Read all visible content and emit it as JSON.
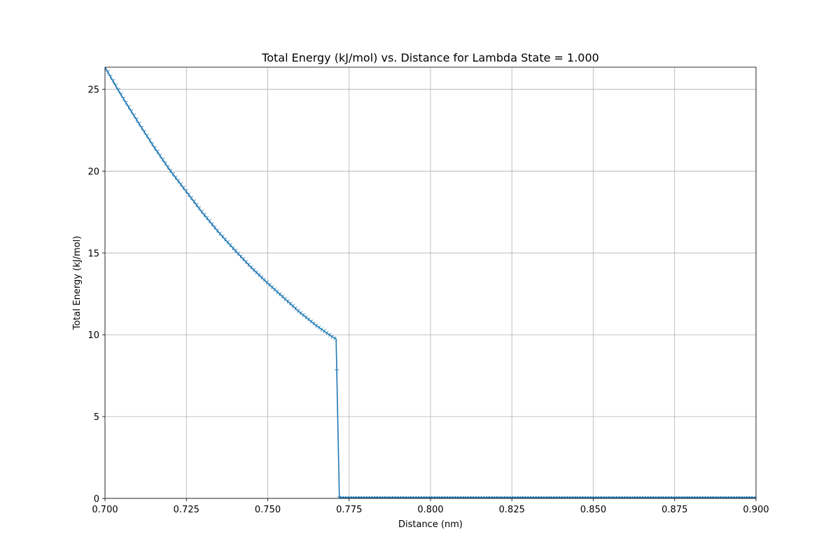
{
  "chart_data": {
    "type": "line",
    "title": "Total Energy (kJ/mol) vs. Distance for Lambda State = 1.000",
    "xlabel": "Distance (nm)",
    "ylabel": "Total Energy (kJ/mol)",
    "xlim": [
      0.7,
      0.9
    ],
    "ylim": [
      0,
      26.35
    ],
    "xticks": [
      0.7,
      0.725,
      0.75,
      0.775,
      0.8,
      0.825,
      0.85,
      0.875,
      0.9
    ],
    "xtick_labels": [
      "0.700",
      "0.725",
      "0.750",
      "0.775",
      "0.800",
      "0.825",
      "0.850",
      "0.875",
      "0.900"
    ],
    "yticks": [
      0,
      5,
      10,
      15,
      20,
      25
    ],
    "ytick_labels": [
      "0",
      "5",
      "10",
      "15",
      "20",
      "25"
    ],
    "grid": true,
    "marker": "tri_down",
    "color": "#1f77b4",
    "series": [
      {
        "x": [
          0.7,
          0.705,
          0.71,
          0.715,
          0.72,
          0.725,
          0.73,
          0.735,
          0.74,
          0.745,
          0.75,
          0.755,
          0.76,
          0.765,
          0.77,
          0.771,
          0.772,
          0.775,
          0.78,
          0.79,
          0.8,
          0.81,
          0.82,
          0.83,
          0.84,
          0.85,
          0.86,
          0.87,
          0.88,
          0.89,
          0.9
        ],
        "y": [
          26.35,
          24.65,
          23.05,
          21.5,
          20.05,
          18.75,
          17.45,
          16.25,
          15.15,
          14.1,
          13.15,
          12.25,
          11.35,
          10.55,
          9.85,
          9.75,
          0.05,
          0.05,
          0.05,
          0.05,
          0.05,
          0.05,
          0.05,
          0.05,
          0.05,
          0.05,
          0.05,
          0.05,
          0.05,
          0.05,
          0.05
        ]
      }
    ]
  }
}
